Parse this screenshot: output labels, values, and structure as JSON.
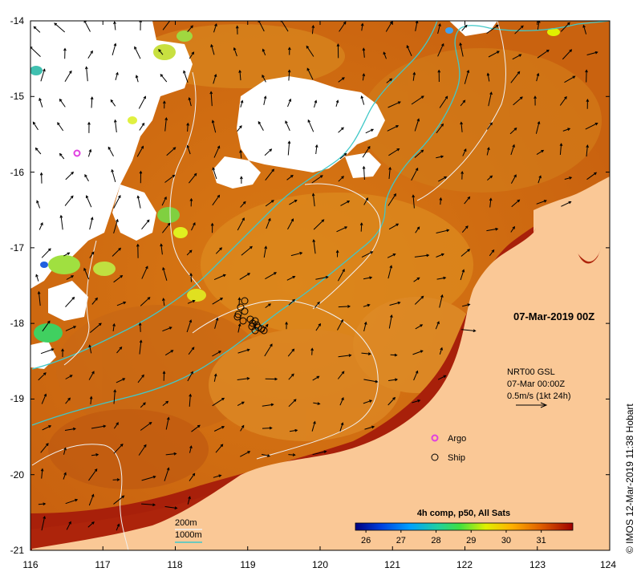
{
  "map": {
    "extent": {
      "lon_min": 116,
      "lon_max": 124,
      "lat_min": -21,
      "lat_max": -14
    },
    "x_ticks": [
      "116",
      "117",
      "118",
      "119",
      "120",
      "121",
      "122",
      "123",
      "124"
    ],
    "y_ticks": [
      "-14",
      "-15",
      "-16",
      "-17",
      "-18",
      "-19",
      "-20",
      "-21"
    ],
    "date_label": "07-Mar-2019 00Z",
    "current_info": {
      "line1": "NRT00 GSL",
      "line2": "07-Mar 00:00Z",
      "line3": "0.5m/s (1kt 24h)"
    },
    "legend": {
      "argo": "Argo",
      "ship": "Ship",
      "argo_color": "#e040e0"
    },
    "depth_legend": {
      "c200": "200m",
      "c1000": "1000m",
      "c200_color": "#f0f0f0",
      "c1000_color": "#40c8c8"
    },
    "colorbar": {
      "title": "4h comp, p50, All Sats",
      "ticks": [
        "26",
        "27",
        "28",
        "29",
        "30",
        "31"
      ],
      "vmin": 25.7,
      "vmax": 31.9
    },
    "credit": "© IMOS 12-Mar-2019 11:38 Hobart",
    "colors": {
      "land": "#fac896",
      "sea_warm": "#e08a1c",
      "sea_hot": "#c84e10",
      "coast_hot": "#a01808",
      "cloud": "#ffffff"
    }
  }
}
